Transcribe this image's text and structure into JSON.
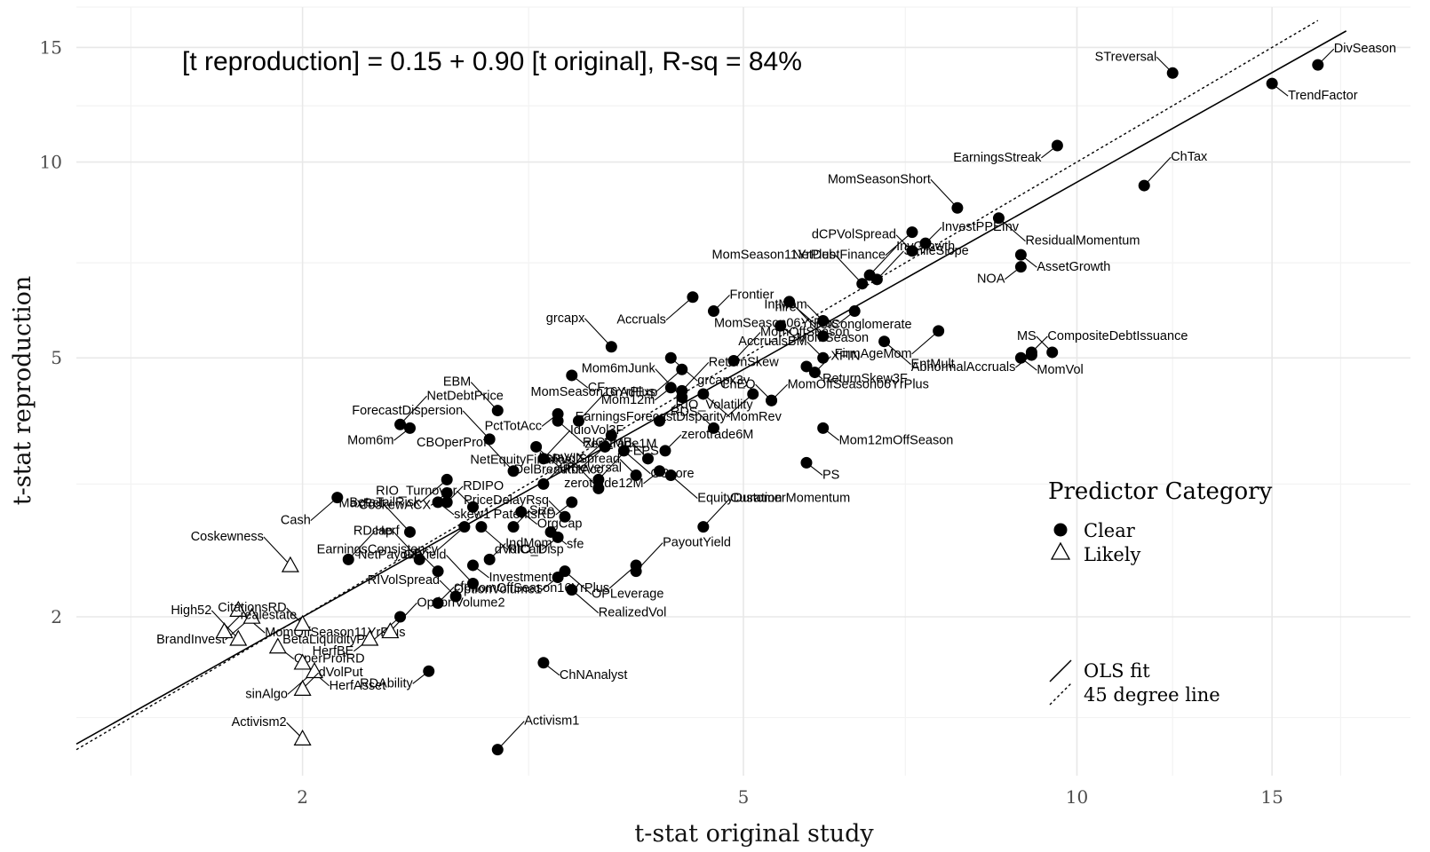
{
  "chart_data": {
    "type": "scatter",
    "title": "",
    "equation": "[t reproduction] = 0.15 + 0.90 [t original], R-sq = 84%",
    "xlabel": "t-stat original study",
    "ylabel": "t-stat reproduction",
    "x_scale": "log",
    "y_scale": "log",
    "xlim": [
      1.25,
      20.0
    ],
    "ylim": [
      1.14,
      17.3
    ],
    "x_ticks": [
      {
        "value": 2,
        "label": "2"
      },
      {
        "value": 5,
        "label": "5"
      },
      {
        "value": 10,
        "label": "10"
      },
      {
        "value": 15,
        "label": "15"
      }
    ],
    "y_ticks": [
      {
        "value": 2,
        "label": "2"
      },
      {
        "value": 5,
        "label": "5"
      },
      {
        "value": 10,
        "label": "10"
      },
      {
        "value": 15,
        "label": "15"
      }
    ],
    "grid": true,
    "ols_fit": {
      "intercept": 0.15,
      "slope": 0.9
    },
    "legend": {
      "position": "right",
      "category_title": "Predictor Category",
      "categories": [
        {
          "name": "Clear",
          "marker": "filled-circle"
        },
        {
          "name": "Likely",
          "marker": "open-triangle"
        }
      ],
      "lines": [
        {
          "name": "OLS fit",
          "style": "solid"
        },
        {
          "name": "45 degree line",
          "style": "dotted"
        }
      ]
    },
    "points": [
      {
        "label": "DivSeason",
        "x": 16.5,
        "y": 14.1,
        "category": "Clear"
      },
      {
        "label": "STreversal",
        "x": 12.2,
        "y": 13.7,
        "category": "Clear"
      },
      {
        "label": "TrendFactor",
        "x": 15.0,
        "y": 13.2,
        "category": "Clear"
      },
      {
        "label": "EarningsStreak",
        "x": 9.6,
        "y": 10.6,
        "category": "Clear"
      },
      {
        "label": "ChTax",
        "x": 11.5,
        "y": 9.2,
        "category": "Clear"
      },
      {
        "label": "MomSeasonShort",
        "x": 7.8,
        "y": 8.5,
        "category": "Clear"
      },
      {
        "label": "ResidualMomentum",
        "x": 8.5,
        "y": 8.2,
        "category": "Clear"
      },
      {
        "label": "NetDebtFinance",
        "x": 7.1,
        "y": 7.8,
        "category": "Clear"
      },
      {
        "label": "InvestPPEInv",
        "x": 7.3,
        "y": 7.5,
        "category": "Clear"
      },
      {
        "label": "dCPVolSpread",
        "x": 7.1,
        "y": 7.3,
        "category": "Clear"
      },
      {
        "label": "AssetGrowth",
        "x": 8.9,
        "y": 7.2,
        "category": "Clear"
      },
      {
        "label": "NOA",
        "x": 8.9,
        "y": 6.9,
        "category": "Clear"
      },
      {
        "label": "SmileSlope",
        "x": 6.6,
        "y": 6.6,
        "category": "Clear"
      },
      {
        "label": "MomSeason11YrPlus",
        "x": 6.4,
        "y": 6.5,
        "category": "Clear"
      },
      {
        "label": "retConglomerate",
        "x": 5.5,
        "y": 6.1,
        "category": "Clear"
      },
      {
        "label": "Accruals",
        "x": 4.5,
        "y": 6.2,
        "category": "Clear"
      },
      {
        "label": "Frontier",
        "x": 4.7,
        "y": 5.9,
        "category": "Clear"
      },
      {
        "label": "IntMom",
        "x": 5.9,
        "y": 5.7,
        "category": "Clear"
      },
      {
        "label": "MomSeason",
        "x": 5.4,
        "y": 5.6,
        "category": "Clear"
      },
      {
        "label": "MomSeason06YrPlus",
        "x": 6.3,
        "y": 5.9,
        "category": "Clear"
      },
      {
        "label": "InvGrowth",
        "x": 6.5,
        "y": 6.7,
        "category": "Clear"
      },
      {
        "label": "hire",
        "x": 5.9,
        "y": 5.4,
        "category": "Clear"
      },
      {
        "label": "EntMult",
        "x": 6.7,
        "y": 5.3,
        "category": "Clear"
      },
      {
        "label": "FirmAgeMom",
        "x": 7.5,
        "y": 5.5,
        "category": "Clear"
      },
      {
        "label": "CompositeDebtIssuance",
        "x": 9.1,
        "y": 5.1,
        "category": "Clear"
      },
      {
        "label": "MS",
        "x": 9.5,
        "y": 5.1,
        "category": "Clear"
      },
      {
        "label": "MomVol",
        "x": 8.9,
        "y": 5.0,
        "category": "Clear"
      },
      {
        "label": "AbnormalAccruals",
        "x": 9.1,
        "y": 5.05,
        "category": "Clear"
      },
      {
        "label": "MomOffSeason",
        "x": 4.9,
        "y": 4.95,
        "category": "Clear"
      },
      {
        "label": "grcapx",
        "x": 3.8,
        "y": 5.2,
        "category": "Clear"
      },
      {
        "label": "grcapx3y",
        "x": 4.3,
        "y": 5.0,
        "category": "Clear"
      },
      {
        "label": "MomSeason16YrPlus",
        "x": 4.4,
        "y": 4.8,
        "category": "Clear"
      },
      {
        "label": "XFIN",
        "x": 5.8,
        "y": 4.75,
        "category": "Clear"
      },
      {
        "label": "AccrualsBM",
        "x": 5.9,
        "y": 5.0,
        "category": "Clear"
      },
      {
        "label": "ReturnSkew3F",
        "x": 5.7,
        "y": 4.85,
        "category": "Clear"
      },
      {
        "label": "Mom12m",
        "x": 4.3,
        "y": 4.5,
        "category": "Clear"
      },
      {
        "label": "ReturnSkew",
        "x": 4.4,
        "y": 4.45,
        "category": "Clear"
      },
      {
        "label": "Mom6mJunk",
        "x": 4.4,
        "y": 4.35,
        "category": "Clear"
      },
      {
        "label": "MomRev",
        "x": 4.6,
        "y": 4.4,
        "category": "Clear"
      },
      {
        "label": "EarningsForecastDisparity",
        "x": 5.1,
        "y": 4.4,
        "category": "Clear"
      },
      {
        "label": "MomOffSeason06YrPlus",
        "x": 5.3,
        "y": 4.3,
        "category": "Clear"
      },
      {
        "label": "ChEQ",
        "x": 5.3,
        "y": 4.3,
        "category": "Clear"
      },
      {
        "label": "CF",
        "x": 3.5,
        "y": 4.7,
        "category": "Clear"
      },
      {
        "label": "PctTotAcc",
        "x": 3.4,
        "y": 4.1,
        "category": "Clear"
      },
      {
        "label": "GrAdExp",
        "x": 3.55,
        "y": 4.0,
        "category": "Clear"
      },
      {
        "label": "EBM",
        "x": 3.0,
        "y": 4.15,
        "category": "Clear"
      },
      {
        "label": "zerotrade1M",
        "x": 3.4,
        "y": 4.0,
        "category": "Clear"
      },
      {
        "label": "betaVIX",
        "x": 3.8,
        "y": 3.8,
        "category": "Clear"
      },
      {
        "label": "RIO_Volatility",
        "x": 4.2,
        "y": 4.0,
        "category": "Clear"
      },
      {
        "label": "RDS",
        "x": 4.7,
        "y": 3.9,
        "category": "Clear"
      },
      {
        "label": "Mom12mOffSeason",
        "x": 5.9,
        "y": 3.9,
        "category": "Clear"
      },
      {
        "label": "Mom6m",
        "x": 2.5,
        "y": 3.9,
        "category": "Clear"
      },
      {
        "label": "NetDebtPrice",
        "x": 2.45,
        "y": 3.95,
        "category": "Clear"
      },
      {
        "label": "ForecastDispersion",
        "x": 2.95,
        "y": 3.75,
        "category": "Clear"
      },
      {
        "label": "PctAcc",
        "x": 3.25,
        "y": 3.65,
        "category": "Clear"
      },
      {
        "label": "DelBreadth",
        "x": 3.75,
        "y": 3.65,
        "category": "Clear"
      },
      {
        "label": "zerotrade6M",
        "x": 4.25,
        "y": 3.6,
        "category": "Clear"
      },
      {
        "label": "RIO_MB",
        "x": 4.1,
        "y": 3.5,
        "category": "Clear"
      },
      {
        "label": "PS",
        "x": 5.7,
        "y": 3.45,
        "category": "Clear"
      },
      {
        "label": "zerotrade12M",
        "x": 4.2,
        "y": 3.35,
        "category": "Clear"
      },
      {
        "label": "IdioVol3F",
        "x": 3.3,
        "y": 3.5,
        "category": "Clear"
      },
      {
        "label": "CBOperProf",
        "x": 3.1,
        "y": 3.35,
        "category": "Clear"
      },
      {
        "label": "OScore",
        "x": 3.9,
        "y": 3.6,
        "category": "Clear"
      },
      {
        "label": "BetaTailRisk",
        "x": 2.7,
        "y": 3.25,
        "category": "Clear"
      },
      {
        "label": "LRreversal",
        "x": 3.3,
        "y": 3.2,
        "category": "Clear"
      },
      {
        "label": "CPVolSpread",
        "x": 4.0,
        "y": 3.3,
        "category": "Clear"
      },
      {
        "label": "skew1",
        "x": 2.65,
        "y": 3.0,
        "category": "Clear"
      },
      {
        "label": "CoskewACX",
        "x": 2.7,
        "y": 3.1,
        "category": "Clear"
      },
      {
        "label": "FEPS",
        "x": 3.7,
        "y": 3.25,
        "category": "Clear"
      },
      {
        "label": "NetEquityFinance",
        "x": 3.7,
        "y": 3.15,
        "category": "Clear"
      },
      {
        "label": "EquityDuration",
        "x": 4.3,
        "y": 3.3,
        "category": "Clear"
      },
      {
        "label": "Cash",
        "x": 2.15,
        "y": 3.05,
        "category": "Clear"
      },
      {
        "label": "RDIPO",
        "x": 2.7,
        "y": 3.0,
        "category": "Clear"
      },
      {
        "label": "RIO_Turnover",
        "x": 2.85,
        "y": 2.95,
        "category": "Clear"
      },
      {
        "label": "OrgCap",
        "x": 3.15,
        "y": 2.9,
        "category": "Clear"
      },
      {
        "label": "PatentsRD",
        "x": 3.5,
        "y": 3.0,
        "category": "Clear"
      },
      {
        "label": "CustomerMomentum",
        "x": 4.6,
        "y": 2.75,
        "category": "Clear"
      },
      {
        "label": "MaxRet",
        "x": 2.5,
        "y": 2.7,
        "category": "Clear"
      },
      {
        "label": "RIO_Disp",
        "x": 2.9,
        "y": 2.75,
        "category": "Clear"
      },
      {
        "label": "EarningsConsistency",
        "x": 2.8,
        "y": 2.75,
        "category": "Clear"
      },
      {
        "label": "Size",
        "x": 3.1,
        "y": 2.75,
        "category": "Clear"
      },
      {
        "label": "PriceDelayRsq",
        "x": 3.45,
        "y": 2.85,
        "category": "Clear"
      },
      {
        "label": "sfe",
        "x": 3.35,
        "y": 2.7,
        "category": "Clear"
      },
      {
        "label": "dVolCall",
        "x": 3.4,
        "y": 2.65,
        "category": "Clear"
      },
      {
        "label": "Herf",
        "x": 2.2,
        "y": 2.45,
        "category": "Clear"
      },
      {
        "label": "RDcap",
        "x": 2.55,
        "y": 2.45,
        "category": "Clear"
      },
      {
        "label": "OPLeverage",
        "x": 3.45,
        "y": 2.35,
        "category": "Clear"
      },
      {
        "label": "MomOffSeason16YrPlus",
        "x": 4.0,
        "y": 2.4,
        "category": "Clear"
      },
      {
        "label": "IndMom",
        "x": 2.95,
        "y": 2.45,
        "category": "Clear"
      },
      {
        "label": "GP",
        "x": 2.65,
        "y": 2.35,
        "category": "Clear"
      },
      {
        "label": "Investment",
        "x": 2.85,
        "y": 2.4,
        "category": "Clear"
      },
      {
        "label": "OptionVolume1",
        "x": 3.4,
        "y": 2.3,
        "category": "Clear"
      },
      {
        "label": "PayoutYield",
        "x": 4.0,
        "y": 2.35,
        "category": "Clear"
      },
      {
        "label": "NetPayoutYield",
        "x": 2.85,
        "y": 2.25,
        "category": "Clear"
      },
      {
        "label": "RealizedVol",
        "x": 3.5,
        "y": 2.2,
        "category": "Clear"
      },
      {
        "label": "BetaLiquidityPS",
        "x": 2.45,
        "y": 2.0,
        "category": "Clear"
      },
      {
        "label": "cfp",
        "x": 2.65,
        "y": 2.1,
        "category": "Clear"
      },
      {
        "label": "RIVolSpread",
        "x": 2.75,
        "y": 2.15,
        "category": "Clear"
      },
      {
        "label": "ChNAnalyst",
        "x": 3.3,
        "y": 1.7,
        "category": "Clear"
      },
      {
        "label": "RDAbility",
        "x": 2.6,
        "y": 1.65,
        "category": "Clear"
      },
      {
        "label": "Activism1",
        "x": 3.0,
        "y": 1.25,
        "category": "Clear"
      },
      {
        "label": "Coskewness",
        "x": 1.95,
        "y": 2.4,
        "category": "Likely"
      },
      {
        "label": "MomOffSeason11YrPlus",
        "x": 1.75,
        "y": 2.05,
        "category": "Likely"
      },
      {
        "label": "BrandInvest",
        "x": 1.8,
        "y": 2.0,
        "category": "Likely"
      },
      {
        "label": "realestate",
        "x": 1.7,
        "y": 1.9,
        "category": "Likely"
      },
      {
        "label": "CitationsRD",
        "x": 2.0,
        "y": 1.95,
        "category": "Likely"
      },
      {
        "label": "OperProfRD",
        "x": 1.9,
        "y": 1.8,
        "category": "Likely"
      },
      {
        "label": "HerfBE",
        "x": 2.3,
        "y": 1.85,
        "category": "Likely"
      },
      {
        "label": "OptionVolume2",
        "x": 2.4,
        "y": 1.9,
        "category": "Likely"
      },
      {
        "label": "High52",
        "x": 1.75,
        "y": 1.85,
        "category": "Likely"
      },
      {
        "label": "HerfAsset",
        "x": 2.0,
        "y": 1.7,
        "category": "Likely"
      },
      {
        "label": "sinAlgo",
        "x": 2.05,
        "y": 1.65,
        "category": "Likely"
      },
      {
        "label": "dVolPut",
        "x": 2.0,
        "y": 1.55,
        "category": "Likely"
      },
      {
        "label": "Activism2",
        "x": 2.0,
        "y": 1.3,
        "category": "Likely"
      }
    ]
  }
}
